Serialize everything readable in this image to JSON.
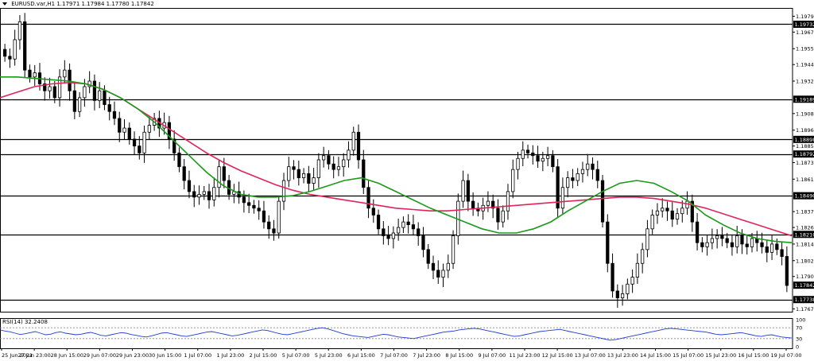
{
  "header": {
    "symbol": "EURUSD.var,H1",
    "ohlc": "1.17971 1.17984 1.17780 1.17842"
  },
  "rsi": {
    "label": "RSI(14) 32.2408",
    "levels": [
      70,
      30
    ],
    "axis_ticks": [
      "100",
      "70",
      "30",
      "0"
    ],
    "values": [
      62,
      58,
      55,
      50,
      45,
      48,
      52,
      56,
      50,
      44,
      46,
      52,
      55,
      50,
      47,
      44,
      46,
      50,
      53,
      48,
      42,
      40,
      44,
      48,
      52,
      50,
      45,
      42,
      38,
      36,
      40,
      45,
      50,
      52,
      48,
      44,
      40,
      38,
      42,
      46,
      50,
      54,
      56,
      52,
      48,
      44,
      40,
      42,
      46,
      50,
      54,
      58,
      62,
      60,
      55,
      50,
      46,
      44,
      48,
      52,
      56,
      60,
      64,
      68,
      70,
      66,
      60,
      54,
      48,
      44,
      40,
      38,
      36,
      34,
      38,
      42,
      46,
      44,
      40,
      36,
      34,
      32,
      30,
      34,
      38,
      42,
      46,
      50,
      54,
      56,
      58,
      62,
      64,
      66,
      68,
      66,
      62,
      58,
      54,
      50,
      46,
      42,
      38,
      40,
      44,
      48,
      52,
      56,
      58,
      60,
      62,
      64,
      60,
      56,
      52,
      48,
      44,
      40,
      36,
      32,
      28,
      24,
      26,
      30,
      34,
      38,
      42,
      46,
      50,
      54,
      58,
      62,
      66,
      68,
      66,
      64,
      62,
      60,
      58,
      56,
      54,
      50,
      46,
      44,
      46,
      48,
      50,
      52,
      48,
      44,
      40,
      38,
      42,
      44,
      40,
      36,
      34,
      32
    ]
  },
  "price_axis_ticks": [
    "1.19790",
    "1.19675",
    "1.19555",
    "1.19440",
    "1.19320",
    "1.19085",
    "1.18965",
    "1.18850",
    "1.18730",
    "1.18610",
    "1.18375",
    "1.18260",
    "1.18140",
    "1.18020",
    "1.17905",
    "1.17670"
  ],
  "price_axis_labels_boxed": [
    "1.19732",
    "1.19189",
    "1.18898",
    "1.18792",
    "1.18490",
    "1.18210",
    "1.17842",
    "1.17738"
  ],
  "time_axis_ticks": [
    "25 Jun 2021",
    "27 Jun 23:00",
    "28 Jun 15:00",
    "29 Jun 07:00",
    "29 Jun 23:00",
    "30 Jun 15:00",
    "1 Jul 07:00",
    "1 Jul 23:00",
    "2 Jul 15:00",
    "5 Jul 07:00",
    "5 Jul 23:00",
    "6 Jul 15:00",
    "7 Jul 07:00",
    "7 Jul 23:00",
    "8 Jul 15:00",
    "9 Jul 07:00",
    "11 Jul 23:00",
    "12 Jul 15:00",
    "13 Jul 07:00",
    "13 Jul 23:00",
    "14 Jul 15:00",
    "15 Jul 07:00",
    "15 Jul 23:00",
    "16 Jul 15:00",
    "19 Jul 07:00"
  ],
  "chart_data": {
    "type": "candlestick",
    "symbol": "EURUSD.var,H1",
    "ylim": [
      1.1765,
      1.1985
    ],
    "horizontal_levels": [
      1.19732,
      1.19189,
      1.18898,
      1.18792,
      1.1849,
      1.1821,
      1.17738
    ],
    "last_price": 1.17842,
    "series": [
      {
        "name": "close",
        "values": [
          1.195,
          1.1948,
          1.1962,
          1.1975,
          1.194,
          1.1935,
          1.1938,
          1.193,
          1.1925,
          1.1928,
          1.192,
          1.1935,
          1.194,
          1.1925,
          1.191,
          1.192,
          1.1928,
          1.1932,
          1.1918,
          1.1925,
          1.1915,
          1.191,
          1.1905,
          1.1895,
          1.1898,
          1.189,
          1.1885,
          1.188,
          1.1895,
          1.19,
          1.1905,
          1.1898,
          1.1902,
          1.189,
          1.188,
          1.187,
          1.186,
          1.1852,
          1.1848,
          1.185,
          1.1852,
          1.1846,
          1.1855,
          1.187,
          1.186,
          1.185,
          1.1852,
          1.1848,
          1.1844,
          1.1842,
          1.184,
          1.1838,
          1.183,
          1.1825,
          1.1822,
          1.1845,
          1.186,
          1.187,
          1.1868,
          1.1862,
          1.1865,
          1.1858,
          1.1862,
          1.1875,
          1.1878,
          1.1872,
          1.1868,
          1.187,
          1.1875,
          1.1882,
          1.1895,
          1.1875,
          1.1855,
          1.184,
          1.1835,
          1.1825,
          1.182,
          1.1818,
          1.1822,
          1.1826,
          1.183,
          1.1828,
          1.1825,
          1.182,
          1.181,
          1.18,
          1.1795,
          1.179,
          1.1795,
          1.18,
          1.182,
          1.1845,
          1.186,
          1.1845,
          1.184,
          1.1838,
          1.1842,
          1.1845,
          1.184,
          1.183,
          1.1838,
          1.1852,
          1.1868,
          1.1876,
          1.1882,
          1.188,
          1.1878,
          1.1874,
          1.1876,
          1.1878,
          1.187,
          1.184,
          1.1855,
          1.1862,
          1.186,
          1.1865,
          1.1868,
          1.1872,
          1.1868,
          1.186,
          1.183,
          1.18,
          1.178,
          1.1775,
          1.1778,
          1.1785,
          1.179,
          1.18,
          1.181,
          1.1825,
          1.1835,
          1.1838,
          1.184,
          1.1838,
          1.1832,
          1.1836,
          1.184,
          1.1845,
          1.183,
          1.1815,
          1.1812,
          1.1815,
          1.1818,
          1.182,
          1.1818,
          1.1815,
          1.1812,
          1.182,
          1.1814,
          1.1812,
          1.1818,
          1.1815,
          1.1812,
          1.1808,
          1.1814,
          1.181,
          1.1805,
          1.1784
        ]
      },
      {
        "name": "ma_fast",
        "values": [
          1.1935,
          1.1935,
          1.1934,
          1.1933,
          1.1932,
          1.193,
          1.1926,
          1.192,
          1.1912,
          1.1902,
          1.189,
          1.1878,
          1.1866,
          1.1856,
          1.185,
          1.1848,
          1.1848,
          1.1849,
          1.1852,
          1.1856,
          1.186,
          1.1862,
          1.1858,
          1.1852,
          1.1846,
          1.184,
          1.1835,
          1.183,
          1.1825,
          1.1822,
          1.1822,
          1.1825,
          1.183,
          1.1838,
          1.1845,
          1.1852,
          1.1858,
          1.186,
          1.1858,
          1.1852,
          1.1845,
          1.1835,
          1.1828,
          1.1822,
          1.1818,
          1.1816,
          1.1815
        ]
      },
      {
        "name": "ma_slow",
        "values": [
          1.192,
          1.1924,
          1.1928,
          1.193,
          1.1931,
          1.193,
          1.1926,
          1.192,
          1.1912,
          1.1904,
          1.1896,
          1.1888,
          1.188,
          1.1873,
          1.1867,
          1.1862,
          1.1857,
          1.1853,
          1.185,
          1.1848,
          1.1846,
          1.1844,
          1.1842,
          1.184,
          1.1839,
          1.1838,
          1.1838,
          1.1839,
          1.184,
          1.1841,
          1.1842,
          1.1843,
          1.1844,
          1.1845,
          1.1846,
          1.1847,
          1.1848,
          1.1848,
          1.1847,
          1.1845,
          1.1843,
          1.184,
          1.1836,
          1.1832,
          1.1828,
          1.1824,
          1.182
        ]
      }
    ]
  },
  "colors": {
    "bull_body": "#ffffff",
    "bear_body": "#000000",
    "candle_outline": "#000000",
    "ma_fast": "#1a9a1a",
    "ma_slow": "#e0245a",
    "rsi_line": "#1f3bd6",
    "level_line": "#000000",
    "grid_dotted": "#888888"
  }
}
